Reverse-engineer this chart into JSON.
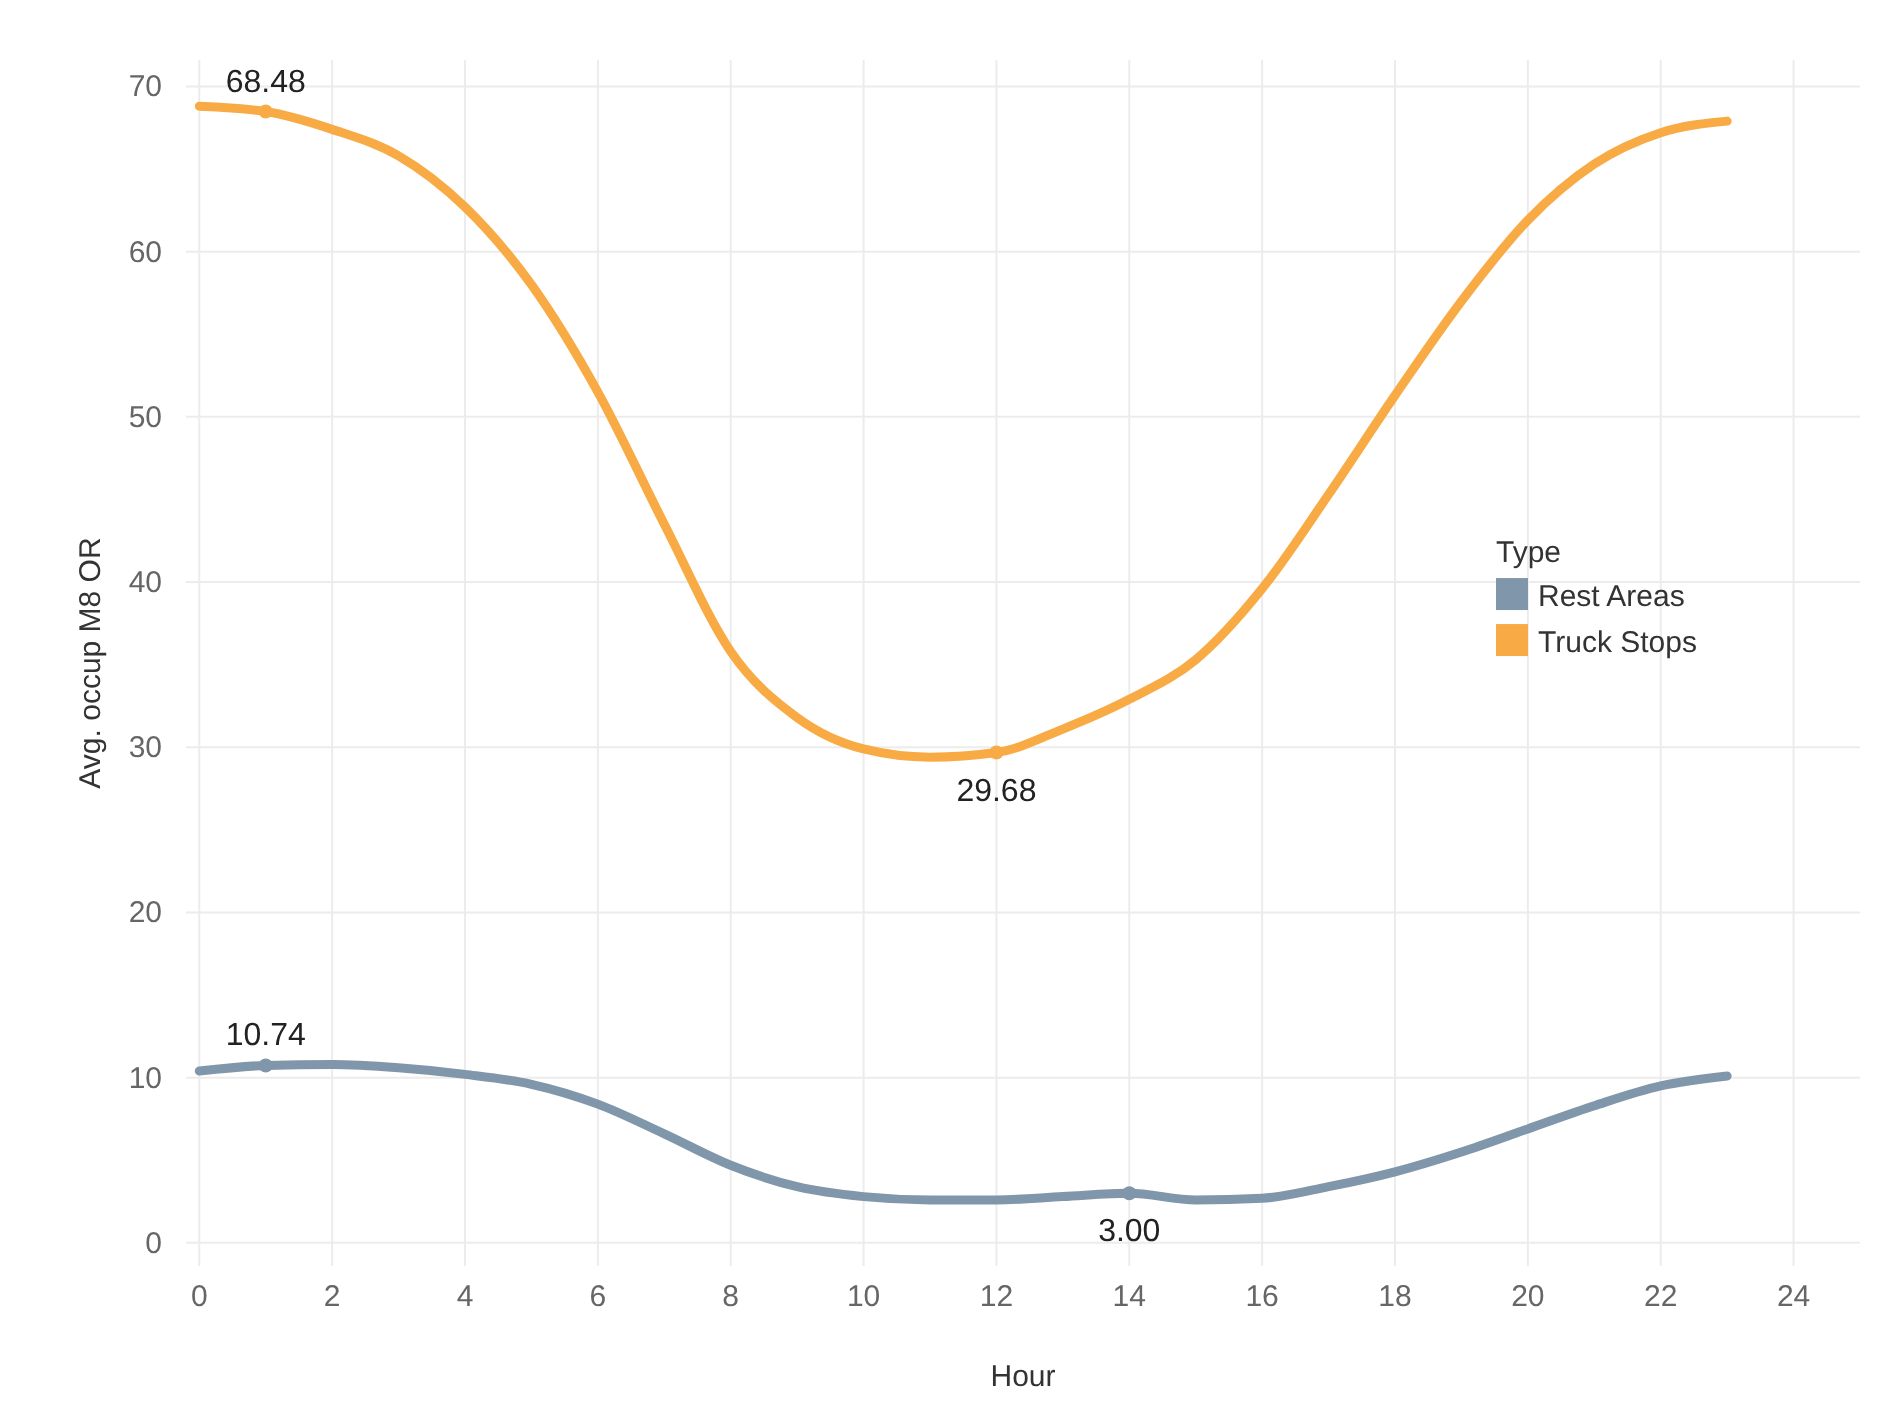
{
  "chart_data": {
    "type": "line",
    "xlabel": "Hour",
    "ylabel": "Avg. occup M8 OR",
    "legend_title": "Type",
    "legend": "right",
    "grid": true,
    "marker": "none",
    "line_style": "solid",
    "x": [
      0,
      1,
      2,
      3,
      4,
      5,
      6,
      7,
      8,
      9,
      10,
      11,
      12,
      13,
      14,
      15,
      16,
      17,
      18,
      19,
      20,
      21,
      22,
      23
    ],
    "series": [
      {
        "name": "Rest Areas",
        "color": "#8096aa",
        "values": [
          10.4,
          10.74,
          10.8,
          10.6,
          10.2,
          9.6,
          8.4,
          6.6,
          4.7,
          3.4,
          2.8,
          2.6,
          2.6,
          2.8,
          3.0,
          2.6,
          2.7,
          3.4,
          4.3,
          5.5,
          6.9,
          8.3,
          9.5,
          10.1
        ]
      },
      {
        "name": "Truck Stops",
        "color": "#f8ab45",
        "values": [
          68.8,
          68.48,
          67.4,
          65.8,
          62.7,
          58,
          51.5,
          43.5,
          35.8,
          31.8,
          29.9,
          29.4,
          29.68,
          31.1,
          32.9,
          35.3,
          39.6,
          45.3,
          51.3,
          57,
          61.9,
          65.3,
          67.2,
          67.9
        ]
      }
    ],
    "xlim": [
      -0.2,
      25
    ],
    "xticks": [
      0,
      2,
      4,
      6,
      8,
      10,
      12,
      14,
      16,
      18,
      20,
      22,
      24
    ],
    "ylim": [
      -1.4,
      71.6
    ],
    "yticks": [
      0,
      10,
      20,
      30,
      40,
      50,
      60,
      70
    ],
    "annotations": [
      {
        "text": "68.48",
        "x": 1,
        "y": 68.48
      },
      {
        "text": "29.68",
        "x": 12,
        "y": 29.68
      },
      {
        "text": "10.74",
        "x": 1,
        "y": 10.74
      },
      {
        "text": "3.00",
        "x": 14,
        "y": 3.0
      }
    ]
  }
}
